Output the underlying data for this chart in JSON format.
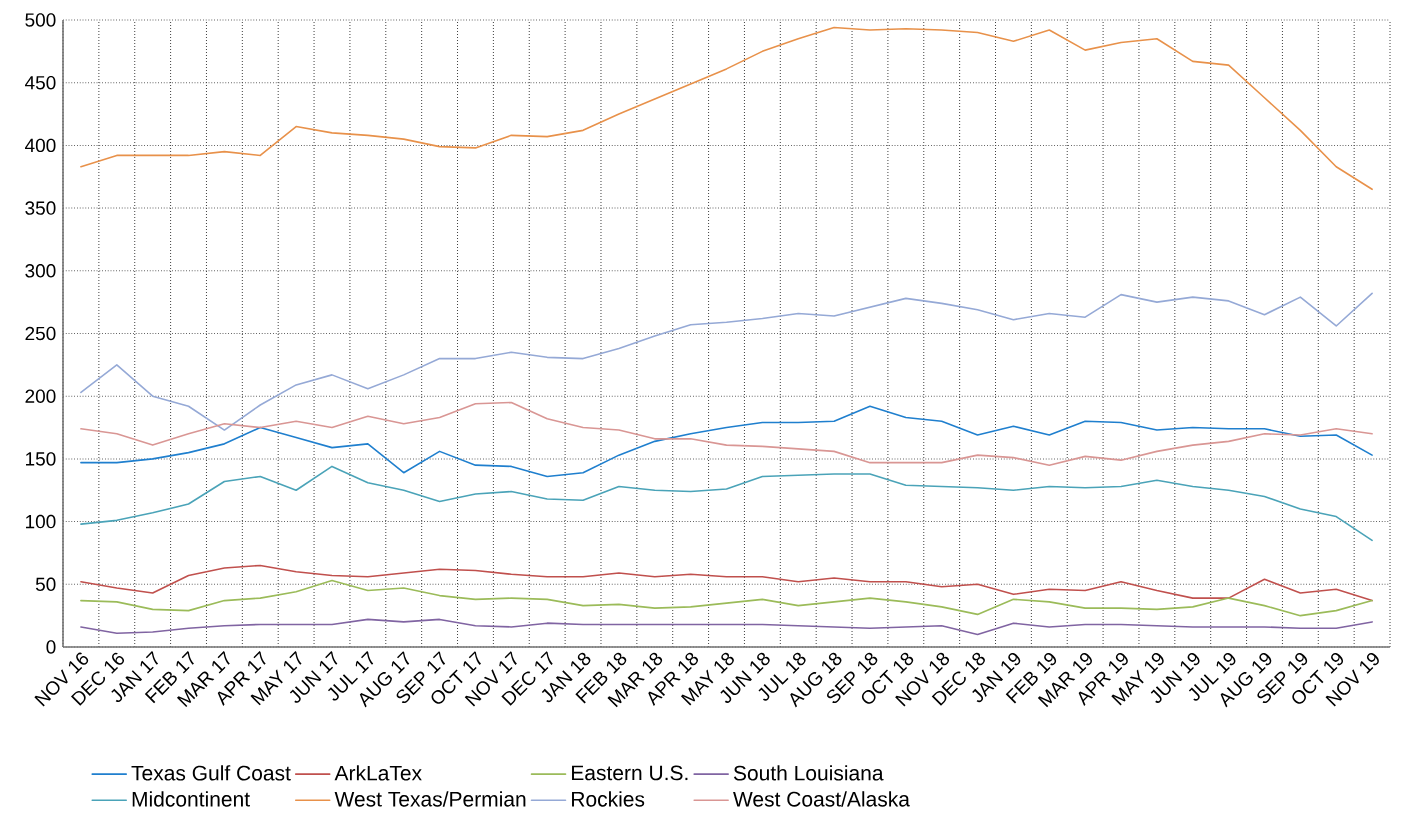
{
  "chart_data": {
    "type": "line",
    "categories": [
      "NOV 16",
      "DEC 16",
      "JAN 17",
      "FEB 17",
      "MAR 17",
      "APR 17",
      "MAY 17",
      "JUN 17",
      "JUL 17",
      "AUG 17",
      "SEP 17",
      "OCT 17",
      "NOV 17",
      "DEC 17",
      "JAN 18",
      "FEB 18",
      "MAR 18",
      "APR 18",
      "MAY 18",
      "JUN 18",
      "JUL 18",
      "AUG 18",
      "SEP 18",
      "OCT 18",
      "NOV 18",
      "DEC 18",
      "JAN 19",
      "FEB 19",
      "MAR 19",
      "APR 19",
      "MAY 19",
      "JUN 19",
      "JUL 19",
      "AUG 19",
      "SEP 19",
      "OCT 19",
      "NOV 19"
    ],
    "series": [
      {
        "name": "Texas Gulf Coast",
        "color": "#1f7fce",
        "values": [
          147,
          147,
          150,
          155,
          162,
          175,
          167,
          159,
          162,
          139,
          156,
          145,
          144,
          136,
          139,
          153,
          164,
          170,
          175,
          179,
          179,
          180,
          192,
          183,
          180,
          169,
          176,
          169,
          180,
          179,
          173,
          175,
          174,
          174,
          168,
          169,
          153
        ]
      },
      {
        "name": "ArkLaTex",
        "color": "#c0504d",
        "values": [
          52,
          47,
          43,
          57,
          63,
          65,
          60,
          57,
          56,
          59,
          62,
          61,
          58,
          56,
          56,
          59,
          56,
          58,
          56,
          56,
          52,
          55,
          52,
          52,
          48,
          50,
          42,
          46,
          45,
          52,
          45,
          39,
          39,
          54,
          43,
          46,
          37
        ]
      },
      {
        "name": "Eastern U.S.",
        "color": "#9bbb59",
        "values": [
          37,
          36,
          30,
          29,
          37,
          39,
          44,
          53,
          45,
          47,
          41,
          38,
          39,
          38,
          33,
          34,
          31,
          32,
          35,
          38,
          33,
          36,
          39,
          36,
          32,
          26,
          38,
          36,
          31,
          31,
          30,
          32,
          39,
          33,
          25,
          29,
          37
        ]
      },
      {
        "name": "South Louisiana",
        "color": "#8064a2",
        "values": [
          16,
          11,
          12,
          15,
          17,
          18,
          18,
          18,
          22,
          20,
          22,
          17,
          16,
          19,
          18,
          18,
          18,
          18,
          18,
          18,
          17,
          16,
          15,
          16,
          17,
          10,
          19,
          16,
          18,
          18,
          17,
          16,
          16,
          16,
          15,
          15,
          20
        ]
      },
      {
        "name": "Midcontinent",
        "color": "#4aa3b8",
        "values": [
          98,
          101,
          107,
          114,
          132,
          136,
          125,
          144,
          131,
          125,
          116,
          122,
          124,
          118,
          117,
          128,
          125,
          124,
          126,
          136,
          137,
          138,
          138,
          129,
          128,
          127,
          125,
          128,
          127,
          128,
          133,
          128,
          125,
          120,
          110,
          104,
          85
        ]
      },
      {
        "name": "West Texas/Permian",
        "color": "#e8914a",
        "values": [
          383,
          392,
          392,
          392,
          395,
          392,
          415,
          410,
          408,
          405,
          399,
          398,
          408,
          407,
          412,
          425,
          437,
          449,
          461,
          475,
          485,
          494,
          492,
          493,
          492,
          490,
          483,
          492,
          476,
          482,
          485,
          467,
          464,
          438,
          412,
          383,
          365
        ]
      },
      {
        "name": "Rockies",
        "color": "#95a9d6",
        "values": [
          203,
          225,
          200,
          192,
          173,
          193,
          209,
          217,
          206,
          217,
          230,
          230,
          235,
          231,
          230,
          238,
          248,
          257,
          259,
          262,
          266,
          264,
          271,
          278,
          274,
          269,
          261,
          266,
          263,
          281,
          275,
          279,
          276,
          265,
          279,
          256,
          282
        ]
      },
      {
        "name": "West Coast/Alaska",
        "color": "#d99694",
        "values": [
          174,
          170,
          161,
          170,
          178,
          175,
          180,
          175,
          184,
          178,
          183,
          194,
          195,
          182,
          175,
          173,
          166,
          166,
          161,
          160,
          158,
          156,
          147,
          147,
          147,
          153,
          151,
          145,
          152,
          149,
          156,
          161,
          164,
          170,
          169,
          174,
          170
        ]
      }
    ],
    "ylim": [
      0,
      500
    ],
    "yticks": [
      0,
      50,
      100,
      150,
      200,
      250,
      300,
      350,
      400,
      450,
      500
    ],
    "grid": true,
    "legend": "bottom",
    "marker": "none",
    "line_style": "solid"
  }
}
